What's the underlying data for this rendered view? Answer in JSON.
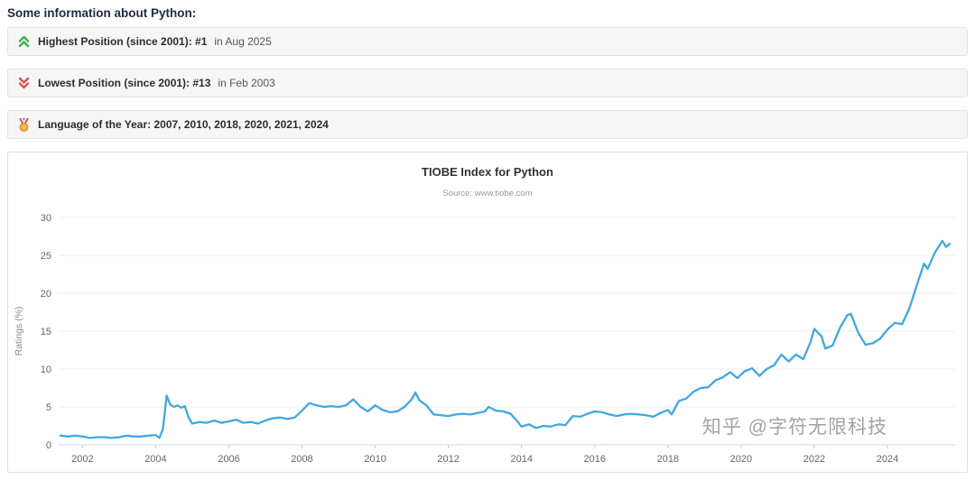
{
  "page": {
    "heading": "Some information about Python:"
  },
  "info_boxes": [
    {
      "icon": "double-chevron-up",
      "bold": "Highest Position (since 2001): #1",
      "normal": "in Aug 2025"
    },
    {
      "icon": "double-chevron-down",
      "bold": "Lowest Position (since 2001): #13",
      "normal": "in Feb 2003"
    },
    {
      "icon": "medal",
      "bold": "Language of the Year: 2007, 2010, 2018, 2020, 2021, 2024",
      "normal": ""
    }
  ],
  "watermark": "知乎 @字符无限科技",
  "chart_data": {
    "type": "line",
    "title": "TIOBE Index for Python",
    "subtitle": "Source: www.tiobe.com",
    "xlabel": "",
    "ylabel": "Ratings (%)",
    "xlim": [
      2001.35,
      2025.85
    ],
    "ylim": [
      0,
      30
    ],
    "yticks": [
      0,
      5,
      10,
      15,
      20,
      25,
      30
    ],
    "xticks": [
      2002,
      2004,
      2006,
      2008,
      2010,
      2012,
      2014,
      2016,
      2018,
      2020,
      2022,
      2024
    ],
    "line_color": "#41a8e0",
    "grid": "faint-horizontal",
    "legend": "none",
    "series": [
      {
        "name": "Python",
        "points": [
          [
            2001.4,
            1.2
          ],
          [
            2001.6,
            1.1
          ],
          [
            2001.8,
            1.2
          ],
          [
            2002.0,
            1.1
          ],
          [
            2002.2,
            0.9
          ],
          [
            2002.4,
            1.0
          ],
          [
            2002.6,
            1.0
          ],
          [
            2002.8,
            0.9
          ],
          [
            2003.0,
            1.0
          ],
          [
            2003.2,
            1.2
          ],
          [
            2003.4,
            1.1
          ],
          [
            2003.6,
            1.1
          ],
          [
            2003.8,
            1.2
          ],
          [
            2004.0,
            1.3
          ],
          [
            2004.1,
            0.9
          ],
          [
            2004.2,
            2.1
          ],
          [
            2004.3,
            6.5
          ],
          [
            2004.4,
            5.3
          ],
          [
            2004.5,
            5.0
          ],
          [
            2004.6,
            5.2
          ],
          [
            2004.7,
            4.9
          ],
          [
            2004.8,
            5.1
          ],
          [
            2004.9,
            3.6
          ],
          [
            2005.0,
            2.8
          ],
          [
            2005.2,
            3.0
          ],
          [
            2005.4,
            2.9
          ],
          [
            2005.6,
            3.2
          ],
          [
            2005.8,
            2.9
          ],
          [
            2006.0,
            3.1
          ],
          [
            2006.2,
            3.3
          ],
          [
            2006.4,
            2.9
          ],
          [
            2006.6,
            3.0
          ],
          [
            2006.8,
            2.8
          ],
          [
            2007.0,
            3.2
          ],
          [
            2007.2,
            3.5
          ],
          [
            2007.4,
            3.6
          ],
          [
            2007.6,
            3.4
          ],
          [
            2007.8,
            3.6
          ],
          [
            2008.0,
            4.5
          ],
          [
            2008.2,
            5.5
          ],
          [
            2008.4,
            5.2
          ],
          [
            2008.6,
            5.0
          ],
          [
            2008.8,
            5.1
          ],
          [
            2009.0,
            5.0
          ],
          [
            2009.2,
            5.2
          ],
          [
            2009.4,
            6.0
          ],
          [
            2009.6,
            5.0
          ],
          [
            2009.8,
            4.4
          ],
          [
            2010.0,
            5.2
          ],
          [
            2010.2,
            4.6
          ],
          [
            2010.4,
            4.3
          ],
          [
            2010.6,
            4.4
          ],
          [
            2010.8,
            5.0
          ],
          [
            2011.0,
            6.0
          ],
          [
            2011.1,
            6.9
          ],
          [
            2011.2,
            5.9
          ],
          [
            2011.4,
            5.2
          ],
          [
            2011.6,
            4.0
          ],
          [
            2011.8,
            3.9
          ],
          [
            2012.0,
            3.8
          ],
          [
            2012.2,
            4.0
          ],
          [
            2012.4,
            4.1
          ],
          [
            2012.6,
            4.0
          ],
          [
            2012.8,
            4.2
          ],
          [
            2013.0,
            4.4
          ],
          [
            2013.1,
            5.0
          ],
          [
            2013.3,
            4.5
          ],
          [
            2013.5,
            4.4
          ],
          [
            2013.7,
            4.1
          ],
          [
            2013.9,
            3.0
          ],
          [
            2014.0,
            2.4
          ],
          [
            2014.2,
            2.7
          ],
          [
            2014.4,
            2.2
          ],
          [
            2014.6,
            2.5
          ],
          [
            2014.8,
            2.4
          ],
          [
            2015.0,
            2.7
          ],
          [
            2015.2,
            2.6
          ],
          [
            2015.4,
            3.8
          ],
          [
            2015.6,
            3.7
          ],
          [
            2015.8,
            4.1
          ],
          [
            2016.0,
            4.4
          ],
          [
            2016.2,
            4.3
          ],
          [
            2016.4,
            4.0
          ],
          [
            2016.6,
            3.8
          ],
          [
            2016.8,
            4.0
          ],
          [
            2017.0,
            4.1
          ],
          [
            2017.2,
            4.0
          ],
          [
            2017.4,
            3.9
          ],
          [
            2017.6,
            3.7
          ],
          [
            2017.8,
            4.2
          ],
          [
            2018.0,
            4.6
          ],
          [
            2018.1,
            4.0
          ],
          [
            2018.3,
            5.8
          ],
          [
            2018.5,
            6.1
          ],
          [
            2018.7,
            7.0
          ],
          [
            2018.9,
            7.5
          ],
          [
            2019.1,
            7.6
          ],
          [
            2019.3,
            8.5
          ],
          [
            2019.5,
            8.9
          ],
          [
            2019.7,
            9.6
          ],
          [
            2019.9,
            8.8
          ],
          [
            2020.1,
            9.7
          ],
          [
            2020.3,
            10.1
          ],
          [
            2020.5,
            9.1
          ],
          [
            2020.7,
            10.0
          ],
          [
            2020.9,
            10.5
          ],
          [
            2021.1,
            11.9
          ],
          [
            2021.3,
            11.0
          ],
          [
            2021.5,
            11.9
          ],
          [
            2021.7,
            11.3
          ],
          [
            2021.9,
            13.6
          ],
          [
            2022.0,
            15.3
          ],
          [
            2022.2,
            14.3
          ],
          [
            2022.3,
            12.7
          ],
          [
            2022.5,
            13.1
          ],
          [
            2022.7,
            15.4
          ],
          [
            2022.9,
            17.1
          ],
          [
            2023.0,
            17.3
          ],
          [
            2023.2,
            14.8
          ],
          [
            2023.4,
            13.2
          ],
          [
            2023.6,
            13.4
          ],
          [
            2023.8,
            14.0
          ],
          [
            2024.0,
            15.2
          ],
          [
            2024.2,
            16.1
          ],
          [
            2024.4,
            15.9
          ],
          [
            2024.6,
            18.0
          ],
          [
            2024.8,
            21.0
          ],
          [
            2025.0,
            23.9
          ],
          [
            2025.1,
            23.2
          ],
          [
            2025.3,
            25.4
          ],
          [
            2025.5,
            26.9
          ],
          [
            2025.6,
            26.1
          ],
          [
            2025.7,
            26.5
          ]
        ]
      }
    ]
  }
}
